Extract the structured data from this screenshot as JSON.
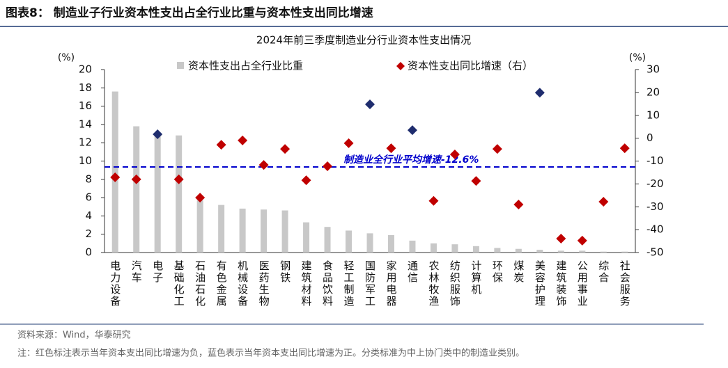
{
  "header": {
    "title": "图表8：  制造业子行业资本性支出占全行业比重与资本性支出同比增速"
  },
  "chart_data": {
    "type": "bar_diamond_combo",
    "title": "2024年前三季度制造业分行业资本性支出情况",
    "y_unit": "(%)",
    "y2_unit": "(%)",
    "categories": [
      "电力设备",
      "汽车",
      "电子",
      "基础化工",
      "石油石化",
      "有色金属",
      "机械设备",
      "医药生物",
      "钢铁",
      "建筑材料",
      "食品饮料",
      "轻工制造",
      "国防军工",
      "家用电器",
      "通信",
      "农林牧渔",
      "纺织服饰",
      "计算机",
      "环保",
      "煤炭",
      "美容护理",
      "建筑装饰",
      "公用事业",
      "综合",
      "社会服务"
    ],
    "series": [
      {
        "name": "资本性支出占全行业比重",
        "color": "#c8c8c8",
        "values": [
          17.6,
          13.8,
          13.0,
          12.8,
          5.7,
          5.2,
          4.8,
          4.7,
          4.6,
          3.3,
          2.8,
          2.4,
          2.1,
          1.9,
          1.3,
          1.0,
          0.9,
          0.7,
          0.5,
          0.4,
          0.3,
          0.2,
          0.2,
          0.1,
          0.1
        ]
      },
      {
        "name": "资本性支出同比增速（右）",
        "color": "#c00000",
        "axis": "y2",
        "positive_color": "#1f2d6e",
        "values": [
          -17.1,
          -18.0,
          1.7,
          -18.0,
          -26.0,
          -2.9,
          -1.0,
          -11.7,
          -4.7,
          -18.4,
          -12.3,
          -2.2,
          14.8,
          -4.4,
          3.5,
          -27.4,
          -7.1,
          -18.7,
          -4.7,
          -29.0,
          19.9,
          -43.9,
          -44.8,
          -27.8,
          -4.4
        ]
      }
    ],
    "ylim": [
      0,
      20
    ],
    "yticks": [
      0,
      2,
      4,
      6,
      8,
      10,
      12,
      14,
      16,
      18,
      20
    ],
    "y2lim": [
      -50,
      30
    ],
    "y2ticks": [
      -50,
      -40,
      -30,
      -20,
      -10,
      0,
      10,
      20,
      30
    ],
    "avg_line": {
      "value": -12.6,
      "label": "制造业全行业平均增速-12.6%",
      "color": "#0000cc"
    }
  },
  "footer": {
    "source": "资料来源：Wind，华泰研究",
    "note": "注：红色标注表示当年资本支出同比增速为负，蓝色表示当年资本支出同比增速为正。分类标准为中上协门类中的制造业类别。"
  }
}
